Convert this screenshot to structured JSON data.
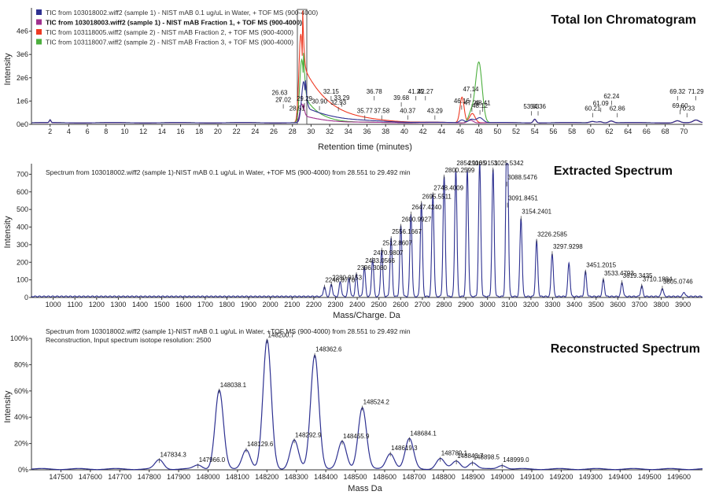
{
  "chart_data": [
    {
      "type": "line",
      "title": "Total Ion Chromatogram",
      "xlabel": "Retention time (minutes)",
      "ylabel": "Intensity",
      "xlim": [
        0,
        72
      ],
      "ylim": [
        0,
        5000000
      ],
      "x_ticks": [
        "2",
        "4",
        "6",
        "8",
        "10",
        "12",
        "14",
        "16",
        "18",
        "20",
        "22",
        "24",
        "26",
        "28",
        "30",
        "32",
        "34",
        "36",
        "38",
        "40",
        "42",
        "44",
        "46",
        "48",
        "50",
        "52",
        "54",
        "56",
        "58",
        "60",
        "62",
        "64",
        "66",
        "68",
        "70"
      ],
      "y_ticks": [
        "0e0",
        "1e6",
        "2e6",
        "3e6",
        "4e6"
      ],
      "series": [
        {
          "name": "TIC from 103018002.wiff2 (sample 1) - NIST mAB 0.1 ug/uL in Water, + TOF MS (900-4000)",
          "color": "#2e3191"
        },
        {
          "name": "TIC from 103018003.wiff2 (sample 1) - NIST mAB Fraction 1, + TOF MS (900-4000)",
          "color": "#a0308e"
        },
        {
          "name": "TIC from 103118005.wiff2 (sample 2) - NIST mAB Fraction 2, + TOF MS (900-4000)",
          "color": "#ee3a23"
        },
        {
          "name": "TIC from 103118007.wiff2 (sample 2) - NIST mAB Fraction 3, + TOF MS (900-4000)",
          "color": "#4caf3e"
        }
      ],
      "peak_labels": [
        {
          "x": 27.02,
          "text": "27.02",
          "y": 900000
        },
        {
          "x": 26.63,
          "text": "26.63",
          "y": 1200000
        },
        {
          "x": 28.51,
          "text": "28.51",
          "y": 520000
        },
        {
          "x": 29.29,
          "text": "29.29",
          "y": 950000
        },
        {
          "x": 30.9,
          "text": "30.90",
          "y": 820000
        },
        {
          "x": 32.15,
          "text": "32.15",
          "y": 1250000
        },
        {
          "x": 32.93,
          "text": "32.93",
          "y": 780000
        },
        {
          "x": 33.29,
          "text": "33.29",
          "y": 980000
        },
        {
          "x": 35.77,
          "text": "35.77",
          "y": 420000
        },
        {
          "x": 36.78,
          "text": "36.78",
          "y": 1250000
        },
        {
          "x": 37.58,
          "text": "37.58",
          "y": 420000
        },
        {
          "x": 39.68,
          "text": "39.68",
          "y": 980000
        },
        {
          "x": 40.37,
          "text": "40.37",
          "y": 420000
        },
        {
          "x": 41.25,
          "text": "41.25",
          "y": 1250000
        },
        {
          "x": 42.27,
          "text": "42.27",
          "y": 1250000
        },
        {
          "x": 43.29,
          "text": "43.29",
          "y": 420000
        },
        {
          "x": 46.16,
          "text": "46.16",
          "y": 850000
        },
        {
          "x": 47.14,
          "text": "47.14",
          "y": 1350000
        },
        {
          "x": 47.26,
          "text": "47.26",
          "y": 760000
        },
        {
          "x": 48.12,
          "text": "48.12",
          "y": 640000
        },
        {
          "x": 48.41,
          "text": "48.41",
          "y": 760000
        },
        {
          "x": 53.63,
          "text": "53.63",
          "y": 600000
        },
        {
          "x": 54.36,
          "text": "54.36",
          "y": 600000
        },
        {
          "x": 60.21,
          "text": "60.21",
          "y": 520000
        },
        {
          "x": 61.09,
          "text": "61.09",
          "y": 750000
        },
        {
          "x": 62.24,
          "text": "62.24",
          "y": 1050000
        },
        {
          "x": 62.86,
          "text": "62.86",
          "y": 520000
        },
        {
          "x": 69.32,
          "text": "69.32",
          "y": 1250000
        },
        {
          "x": 69.6,
          "text": "69.60",
          "y": 650000
        },
        {
          "x": 70.33,
          "text": "70.33",
          "y": 520000
        },
        {
          "x": 71.29,
          "text": "71.29",
          "y": 1250000
        }
      ]
    },
    {
      "type": "line",
      "title": "Extracted Spectrum",
      "description": "Spectrum from 103018002.wiff2 (sample 1)-NIST mAB 0.1 ug/uL in Water, +TOF MS (900-4000) from 28.551 to 29.492 min",
      "xlabel": "Mass/Charge. Da",
      "ylabel": "Intensity",
      "xlim": [
        900,
        3990
      ],
      "ylim": [
        0,
        760
      ],
      "x_ticks": [
        "1000",
        "1100",
        "1200",
        "1300",
        "1400",
        "1500",
        "1600",
        "1700",
        "1800",
        "1900",
        "2000",
        "2100",
        "2200",
        "2300",
        "2400",
        "2500",
        "2600",
        "2700",
        "2800",
        "2900",
        "3000",
        "3100",
        "3200",
        "3300",
        "3400",
        "3500",
        "3600",
        "3700",
        "3800",
        "3900"
      ],
      "y_ticks": [
        "0",
        "100",
        "200",
        "300",
        "400",
        "500",
        "600",
        "700"
      ],
      "peaks": [
        {
          "mz": 2248.877,
          "label": "2248.8770",
          "intensity": 55
        },
        {
          "mz": 2280.9153,
          "label": "2280.9153",
          "intensity": 70
        },
        {
          "mz": 2322,
          "label": "",
          "intensity": 85
        },
        {
          "mz": 2362,
          "label": "",
          "intensity": 105
        },
        {
          "mz": 2396.308,
          "label": "2396.3080",
          "intensity": 125
        },
        {
          "mz": 2433.0566,
          "label": "2433.0566",
          "intensity": 165
        },
        {
          "mz": 2470.9807,
          "label": "2470.9807",
          "intensity": 210
        },
        {
          "mz": 2512.8607,
          "label": "2512.8607",
          "intensity": 265
        },
        {
          "mz": 2556.1667,
          "label": "2556.1667",
          "intensity": 330
        },
        {
          "mz": 2600.9927,
          "label": "2600.9927",
          "intensity": 400
        },
        {
          "mz": 2647.424,
          "label": "2647.4240",
          "intensity": 470
        },
        {
          "mz": 2695.5511,
          "label": "2695.5511",
          "intensity": 530
        },
        {
          "mz": 2748.4009,
          "label": "2748.4009",
          "intensity": 580
        },
        {
          "mz": 2800.2599,
          "label": "2800.2599",
          "intensity": 680
        },
        {
          "mz": 2854.1105,
          "label": "2854.1105",
          "intensity": 720
        },
        {
          "mz": 2906.9151,
          "label": "2906.9151",
          "intensity": 720
        },
        {
          "mz": 2964,
          "label": "",
          "intensity": 760
        },
        {
          "mz": 3025.5342,
          "label": "3025.5342",
          "intensity": 720
        },
        {
          "mz": 3088.5476,
          "label": "3088.5476",
          "intensity": 640
        },
        {
          "mz": 3091.8451,
          "label": "3091.8451",
          "intensity": 520
        },
        {
          "mz": 3154.2401,
          "label": "3154.2401",
          "intensity": 445
        },
        {
          "mz": 3226.2585,
          "label": "3226.2585",
          "intensity": 315
        },
        {
          "mz": 3297.9298,
          "label": "3297.9298",
          "intensity": 245
        },
        {
          "mz": 3375,
          "label": "",
          "intensity": 190
        },
        {
          "mz": 3451.2015,
          "label": "3451.2015",
          "intensity": 140
        },
        {
          "mz": 3533.4793,
          "label": "3533.4793",
          "intensity": 95
        },
        {
          "mz": 3619.3435,
          "label": "3619.3435",
          "intensity": 80
        },
        {
          "mz": 3710.1884,
          "label": "3710.1884",
          "intensity": 60
        },
        {
          "mz": 3805.0746,
          "label": "3805.0746",
          "intensity": 48
        },
        {
          "mz": 3905,
          "label": "",
          "intensity": 25
        }
      ]
    },
    {
      "type": "line",
      "title": "Reconstructed Spectrum",
      "description": "Spectrum from 103018002.wiff2 (sample 1)-NIST mAB 0.1 ug/uL in Water, +TOF MS (900-4000) from 28.551 to 29.492 min",
      "description2": "Reconstruction, Input spectrum isotope resolution: 2500",
      "xlabel": "Mass Da",
      "ylabel": "Intensity",
      "xlim": [
        147400,
        149680
      ],
      "ylim": [
        0,
        100
      ],
      "x_ticks": [
        "147500",
        "147600",
        "147700",
        "147800",
        "147900",
        "148000",
        "148100",
        "148200",
        "148300",
        "148400",
        "148500",
        "148600",
        "148700",
        "148800",
        "148900",
        "149000",
        "149100",
        "149200",
        "149300",
        "149400",
        "149500",
        "149600"
      ],
      "y_ticks": [
        "0%",
        "20%",
        "40%",
        "60%",
        "80%",
        "100%"
      ],
      "peaks": [
        {
          "mass": 147834.3,
          "label": "147834.3",
          "intensity": 7
        },
        {
          "mass": 147966.0,
          "label": "147966.0",
          "intensity": 3
        },
        {
          "mass": 148038.1,
          "label": "148038.1",
          "intensity": 60
        },
        {
          "mass": 148129.6,
          "label": "148129.6",
          "intensity": 15
        },
        {
          "mass": 148200.7,
          "label": "148200.7",
          "intensity": 98
        },
        {
          "mass": 148292.9,
          "label": "148292.9",
          "intensity": 22
        },
        {
          "mass": 148362.6,
          "label": "148362.6",
          "intensity": 87
        },
        {
          "mass": 148455.9,
          "label": "148455.9",
          "intensity": 21
        },
        {
          "mass": 148524.2,
          "label": "148524.2",
          "intensity": 47
        },
        {
          "mass": 148619.3,
          "label": "148619.3",
          "intensity": 12
        },
        {
          "mass": 148684.1,
          "label": "148684.1",
          "intensity": 23
        },
        {
          "mass": 148789.1,
          "label": "148789.1",
          "intensity": 8
        },
        {
          "mass": 148843.7,
          "label": "148843.7",
          "intensity": 6
        },
        {
          "mass": 148898.5,
          "label": "148898.5",
          "intensity": 5
        },
        {
          "mass": 148999.0,
          "label": "148999.0",
          "intensity": 3
        }
      ]
    }
  ]
}
